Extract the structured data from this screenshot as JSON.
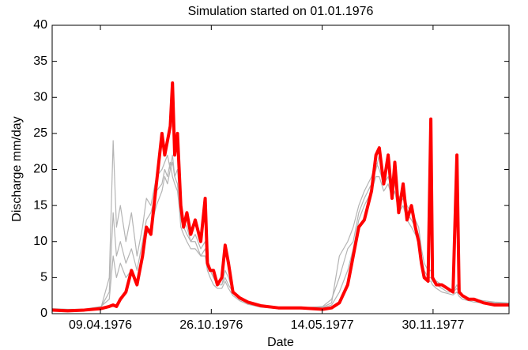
{
  "chart_data": {
    "type": "line",
    "title": "Simulation started on 01.01.1976",
    "xlabel": "Date",
    "ylabel": "Discharge mm/day",
    "x": [
      12,
      40,
      70,
      100,
      115,
      122,
      128,
      135,
      145,
      155,
      165,
      175,
      182,
      190,
      200,
      210,
      215,
      220,
      225,
      229,
      233,
      238,
      244,
      249,
      255,
      262,
      270,
      280,
      288,
      292,
      297,
      303,
      310,
      318,
      324,
      330,
      338,
      350,
      365,
      388,
      420,
      460,
      500,
      516,
      530,
      545,
      555,
      565,
      575,
      588,
      596,
      602,
      610,
      618,
      625,
      630,
      637,
      645,
      652,
      660,
      667,
      673,
      678,
      683,
      690,
      695,
      698,
      705,
      715,
      725,
      735,
      742,
      746,
      752,
      763,
      773,
      790,
      810,
      836
    ],
    "series": [
      {
        "color": "#b4b4b4",
        "width": 1.2,
        "values": [
          0.6,
          0.5,
          0.5,
          0.8,
          5,
          24,
          12,
          15,
          10,
          14,
          8,
          12,
          16,
          15,
          19,
          20,
          21,
          22,
          20,
          21,
          19,
          20,
          14,
          13,
          12,
          10,
          11,
          9,
          10,
          7,
          6,
          5,
          4,
          4,
          6,
          5,
          3,
          2,
          1.5,
          1,
          0.8,
          0.8,
          1,
          2,
          5,
          9,
          10,
          14,
          16,
          18,
          20,
          22,
          19,
          21,
          18,
          20,
          16,
          17,
          15,
          14,
          13,
          12,
          9,
          7,
          6,
          6,
          5,
          4.5,
          4,
          3.5,
          3,
          4,
          3,
          2.5,
          2,
          2,
          1.8,
          1.6,
          1.5
        ]
      },
      {
        "color": "#b4b4b4",
        "width": 1.2,
        "values": [
          0.5,
          0.5,
          0.6,
          0.9,
          3,
          14,
          8,
          10,
          7,
          9,
          6,
          10,
          13,
          14,
          17,
          18,
          20,
          19,
          21,
          19,
          18,
          17,
          13,
          12,
          11,
          10,
          10,
          8,
          9,
          7,
          6,
          5,
          4,
          4,
          5,
          4,
          3,
          2,
          1.5,
          1,
          0.8,
          0.8,
          0.9,
          1.5,
          8,
          10,
          12,
          15,
          17,
          19,
          21,
          20,
          18,
          19,
          17,
          18,
          15,
          16,
          14,
          13,
          12,
          11,
          8,
          6,
          5,
          5,
          4.5,
          4,
          3.5,
          3,
          3,
          3.5,
          2.8,
          2.3,
          2,
          1.8,
          1.6,
          1.5,
          1.4
        ]
      },
      {
        "color": "#b4b4b4",
        "width": 1.2,
        "values": [
          0.7,
          0.6,
          0.6,
          1,
          2,
          8,
          5,
          7,
          5,
          6,
          4,
          8,
          11,
          12,
          15,
          17,
          19,
          18,
          20,
          22,
          19,
          18,
          12,
          11,
          10,
          9,
          9,
          8,
          8,
          6,
          5,
          4,
          3.5,
          3.5,
          4.5,
          3.5,
          2.5,
          1.8,
          1.3,
          0.9,
          0.7,
          0.7,
          0.8,
          1.2,
          3,
          6,
          9,
          13,
          15,
          17,
          19,
          19,
          17,
          18,
          16,
          17,
          14,
          15,
          13,
          12,
          11,
          10,
          7,
          5.5,
          4.5,
          4.5,
          4,
          3.5,
          3,
          2.8,
          2.6,
          3,
          2.4,
          2,
          1.8,
          1.6,
          1.5,
          1.4,
          1.3
        ]
      },
      {
        "color": "#ff0000",
        "width": 4,
        "values": [
          0.5,
          0.4,
          0.5,
          0.7,
          1,
          1.2,
          1,
          2,
          3,
          6,
          4,
          8,
          12,
          11,
          18,
          25,
          22,
          24,
          26,
          32,
          22,
          25,
          15,
          12,
          14,
          11,
          13,
          10,
          16,
          7,
          6,
          6,
          4,
          5,
          9.5,
          7,
          3,
          2.2,
          1.6,
          1.1,
          0.8,
          0.8,
          0.6,
          0.8,
          1.5,
          4,
          8,
          12,
          13,
          17,
          22,
          23,
          18,
          22,
          16,
          21,
          14,
          18,
          13,
          15,
          12,
          10,
          7,
          5,
          4.5,
          27,
          5,
          4,
          4,
          3.5,
          3,
          22,
          3,
          2.5,
          2,
          2,
          1.5,
          1.2,
          1.2
        ]
      }
    ],
    "xlim": [
      12,
      836
    ],
    "xticks": [
      {
        "value": 99,
        "label": "09.04.1976"
      },
      {
        "value": 299,
        "label": "26.10.1976"
      },
      {
        "value": 499,
        "label": "14.05.1977"
      },
      {
        "value": 699,
        "label": "30.11.1977"
      }
    ],
    "ylim": [
      0,
      40
    ],
    "yticks": [
      0,
      5,
      10,
      15,
      20,
      25,
      30,
      35,
      40
    ],
    "grid": false
  }
}
